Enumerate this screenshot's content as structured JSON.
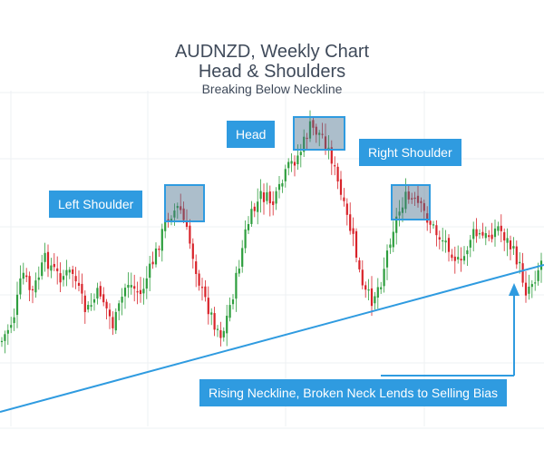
{
  "chart_data": {
    "type": "candlestick",
    "title": "AUDNZD, Weekly Chart",
    "subtitle": "Head & Shoulders",
    "caption": "Breaking Below Neckline",
    "annotations": {
      "left_shoulder": "Left Shoulder",
      "head": "Head",
      "right_shoulder": "Right Shoulder",
      "neckline": "Rising Neckline, Broken Neck Lends to Selling Bias"
    },
    "grid": true,
    "colors": {
      "up": "#2e9e3e",
      "down": "#d8232a",
      "neckline": "#2f9be0",
      "highlight": "#2f9be0"
    }
  }
}
